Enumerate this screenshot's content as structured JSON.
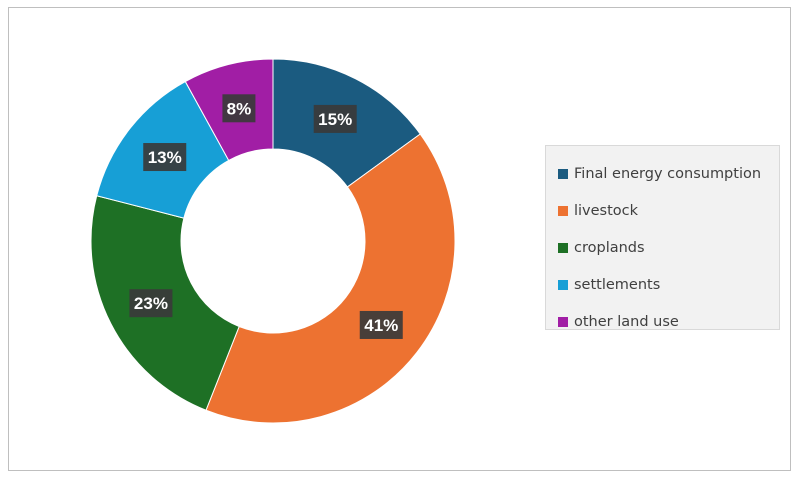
{
  "chart_data": {
    "type": "pie",
    "variant": "donut",
    "categories": [
      "Final energy consumption",
      "livestock",
      "croplands",
      "settlements",
      "other land use"
    ],
    "values": [
      15,
      41,
      23,
      13,
      8
    ],
    "data_labels": [
      "15%",
      "41%",
      "23%",
      "13%",
      "8%"
    ],
    "colors": [
      "#1b5b80",
      "#ed7231",
      "#1e7025",
      "#179fd6",
      "#a11ea5"
    ],
    "legend_position": "right",
    "title": ""
  }
}
